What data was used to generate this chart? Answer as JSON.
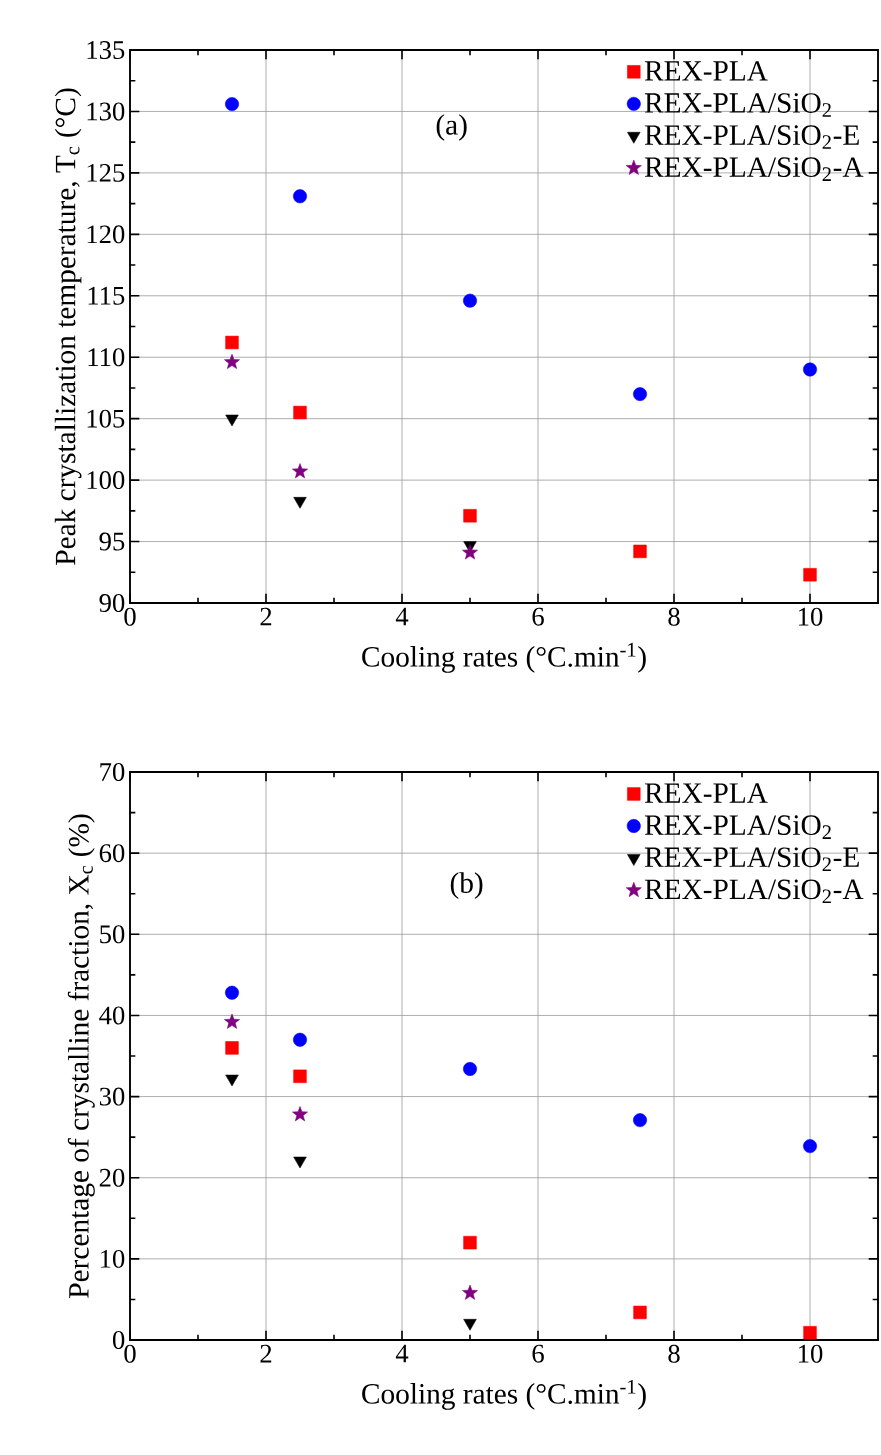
{
  "chart_data": [
    {
      "type": "scatter",
      "xlabel": "Cooling rates (°C.min$^{-1}$)",
      "ylabel": "Peak crystallization temperature, T$_{c}$ (°C)",
      "xlim": [
        0,
        11
      ],
      "ylim": [
        90,
        135
      ],
      "xticks": [
        0,
        2,
        4,
        6,
        8,
        10
      ],
      "yticks": [
        90,
        95,
        100,
        105,
        110,
        115,
        120,
        125,
        130,
        135
      ],
      "grid": true,
      "legend": "top right",
      "annotations": [
        "(a)"
      ],
      "series": [
        {
          "name": "REX-PLA",
          "color": "#ff0000",
          "marker": "square",
          "x": [
            1.5,
            2.5,
            5,
            7.5,
            10
          ],
          "values": [
            111.2,
            105.5,
            97.1,
            94.2,
            92.3
          ]
        },
        {
          "name": "REX-PLA/SiO$_{2}$",
          "color": "#0000ff",
          "marker": "circle",
          "x": [
            1.5,
            2.5,
            5,
            7.5,
            10
          ],
          "values": [
            130.6,
            123.1,
            114.6,
            107.0,
            109.0
          ]
        },
        {
          "name": "REX-PLA/SiO$_{2}$-E",
          "color": "#000000",
          "marker": "triangle",
          "x": [
            1.5,
            2.5,
            5
          ],
          "values": [
            105.0,
            98.3,
            94.7
          ]
        },
        {
          "name": "REX-PLA/SiO$_{2}$-A",
          "color": "#800080",
          "marker": "star",
          "x": [
            1.5,
            2.5,
            5
          ],
          "values": [
            109.6,
            100.7,
            94.1
          ]
        }
      ]
    },
    {
      "type": "scatter",
      "xlabel": "Cooling rates (°C.min$^{-1}$)",
      "ylabel": "Percentage of crystalline fraction, X$_{c}$ (%)",
      "xlim": [
        0,
        11
      ],
      "ylim": [
        0,
        70
      ],
      "xticks": [
        0,
        2,
        4,
        6,
        8,
        10
      ],
      "yticks": [
        0,
        10,
        20,
        30,
        40,
        50,
        60,
        70
      ],
      "grid": true,
      "legend": "top right",
      "annotations": [
        "(b)"
      ],
      "series": [
        {
          "name": "REX-PLA",
          "color": "#ff0000",
          "marker": "square",
          "x": [
            1.5,
            2.5,
            5,
            7.5,
            10
          ],
          "values": [
            36.0,
            32.5,
            12.0,
            3.4,
            0.9
          ]
        },
        {
          "name": "REX-PLA/SiO$_{2}$",
          "color": "#0000ff",
          "marker": "circle",
          "x": [
            1.5,
            2.5,
            5,
            7.5,
            10
          ],
          "values": [
            42.8,
            37.0,
            33.4,
            27.1,
            23.9
          ]
        },
        {
          "name": "REX-PLA/SiO$_{2}$-E",
          "color": "#000000",
          "marker": "triangle",
          "x": [
            1.5,
            2.5,
            5
          ],
          "values": [
            32.2,
            22.1,
            2.1
          ]
        },
        {
          "name": "REX-PLA/SiO$_{2}$-A",
          "color": "#800080",
          "marker": "star",
          "x": [
            1.5,
            2.5,
            5
          ],
          "values": [
            39.2,
            27.8,
            5.8
          ]
        }
      ]
    }
  ]
}
